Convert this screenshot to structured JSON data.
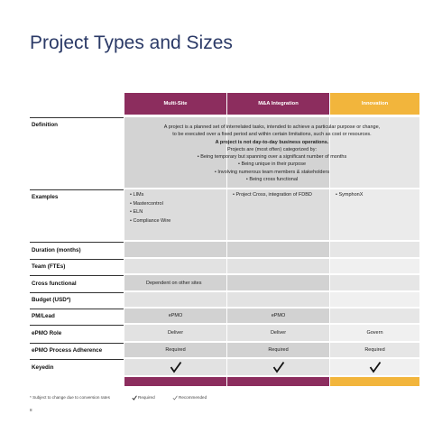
{
  "title": "Project Types and Sizes",
  "table": {
    "columns": [
      "Multi-Site",
      "M&A Integration",
      "Innovation"
    ],
    "definition": {
      "label": "Definition",
      "lines": [
        "A project is a planned set of interrelated tasks, intended to achieve a particular purpose or change,",
        "to be executed over a fixed period and within certain limitations, such as cost or resources.",
        "A project is not day-to-day business operations.",
        "Projects are (most often) categorized by:"
      ],
      "bullets": [
        "Being temporary but spanning over a significant number of months",
        "Being unique in their purpose",
        "Involving numerous team members & stakeholders",
        "Being cross functional"
      ]
    },
    "examples": {
      "label": "Examples",
      "cells": [
        [
          "LIMs",
          "Mastercontrol",
          "ELN",
          "Compliance Wire"
        ],
        [
          "Project Cross, integration of FDBD"
        ],
        [
          "SymphonX"
        ]
      ]
    },
    "rows": [
      {
        "label": "Duration (months)",
        "cells": [
          null,
          null,
          null
        ]
      },
      {
        "label": "Team (FTEs)",
        "cells": [
          null,
          null,
          null
        ]
      },
      {
        "label": "Cross functional",
        "cells": [
          "Dependent on other sites",
          null,
          null
        ]
      },
      {
        "label": "Budget (USD*)",
        "cells": [
          null,
          null,
          null
        ]
      },
      {
        "label": "PM/Lead",
        "cells": [
          "ePMO",
          "ePMO",
          null
        ]
      },
      {
        "label": "ePMO Role",
        "cells": [
          "Deliver",
          "Deliver",
          "Govern"
        ]
      },
      {
        "label": "ePMO Process Adherence",
        "cells": [
          "Required",
          "Required",
          "Required"
        ]
      },
      {
        "label": "Keyedin",
        "cells": [
          null,
          null,
          null
        ]
      }
    ]
  },
  "footnote": "* Subject to change due to conversion rates",
  "legend": [
    "Required",
    "Recommended"
  ],
  "page_number": "8"
}
